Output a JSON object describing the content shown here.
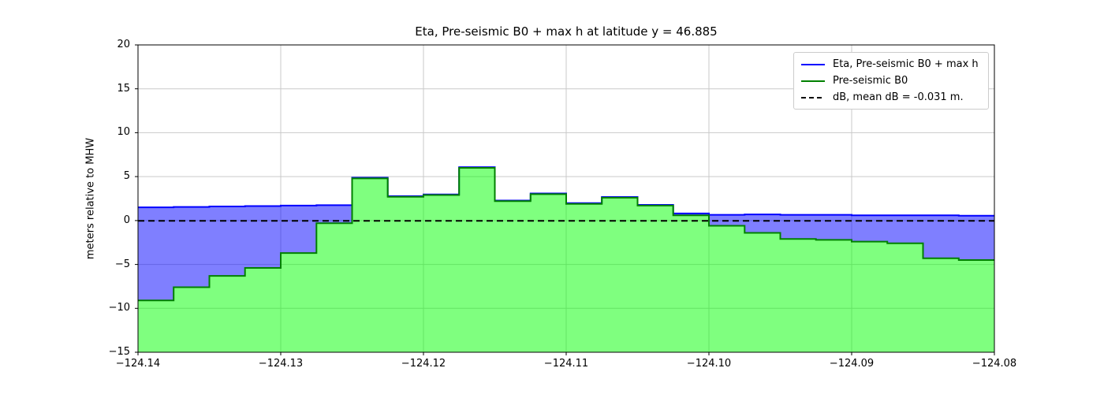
{
  "chart_data": {
    "type": "area",
    "title": "Eta, Pre-seismic B0 + max h at latitude y = 46.885",
    "ylabel": "meters relative to MHW",
    "xlabel": "",
    "xlim": [
      -124.14,
      -124.08
    ],
    "ylim": [
      -15,
      20
    ],
    "grid": true,
    "legend_position": "upper right",
    "grid_color": "#c9c9c9",
    "axis_color": "#000000",
    "x_ticks": [
      {
        "value": -124.14,
        "label": "−124.14"
      },
      {
        "value": -124.13,
        "label": "−124.13"
      },
      {
        "value": -124.12,
        "label": "−124.12"
      },
      {
        "value": -124.11,
        "label": "−124.11"
      },
      {
        "value": -124.1,
        "label": "−124.10"
      },
      {
        "value": -124.09,
        "label": "−124.09"
      },
      {
        "value": -124.08,
        "label": "−124.08"
      }
    ],
    "y_ticks": [
      {
        "value": 20,
        "label": "20"
      },
      {
        "value": 15,
        "label": "15"
      },
      {
        "value": 10,
        "label": "10"
      },
      {
        "value": 5,
        "label": "5"
      },
      {
        "value": 0,
        "label": "0"
      },
      {
        "value": -5,
        "label": "−5"
      },
      {
        "value": -10,
        "label": "−10"
      },
      {
        "value": -15,
        "label": "−15"
      }
    ],
    "cell_x_start": -124.14,
    "cell_dx": 0.0025,
    "series": [
      {
        "name": "Eta, Pre-seismic B0 + max h",
        "type": "step-fill",
        "color": "#0000ff",
        "fill": "rgba(0,0,255,0.5)",
        "values": [
          1.5,
          1.55,
          1.6,
          1.65,
          1.7,
          1.75,
          4.88,
          2.78,
          2.98,
          6.08,
          2.28,
          3.08,
          1.98,
          2.68,
          1.78,
          0.8,
          0.65,
          0.7,
          0.65,
          0.65,
          0.6,
          0.6,
          0.6,
          0.55
        ]
      },
      {
        "name": "Pre-seismic B0",
        "type": "step-fill-to-bottom",
        "color": "#008000",
        "fill": "rgba(0,255,0,0.5)",
        "values": [
          -9.1,
          -7.6,
          -6.3,
          -5.4,
          -3.7,
          -0.3,
          4.8,
          2.7,
          2.9,
          6.0,
          2.2,
          3.0,
          1.9,
          2.6,
          1.7,
          0.6,
          -0.6,
          -1.4,
          -2.1,
          -2.2,
          -2.4,
          -2.6,
          -4.3,
          -4.5
        ]
      },
      {
        "name": "dB, mean dB = -0.031 m.",
        "type": "hline",
        "color": "#000000",
        "dash": "8,5",
        "value": -0.031
      }
    ]
  }
}
